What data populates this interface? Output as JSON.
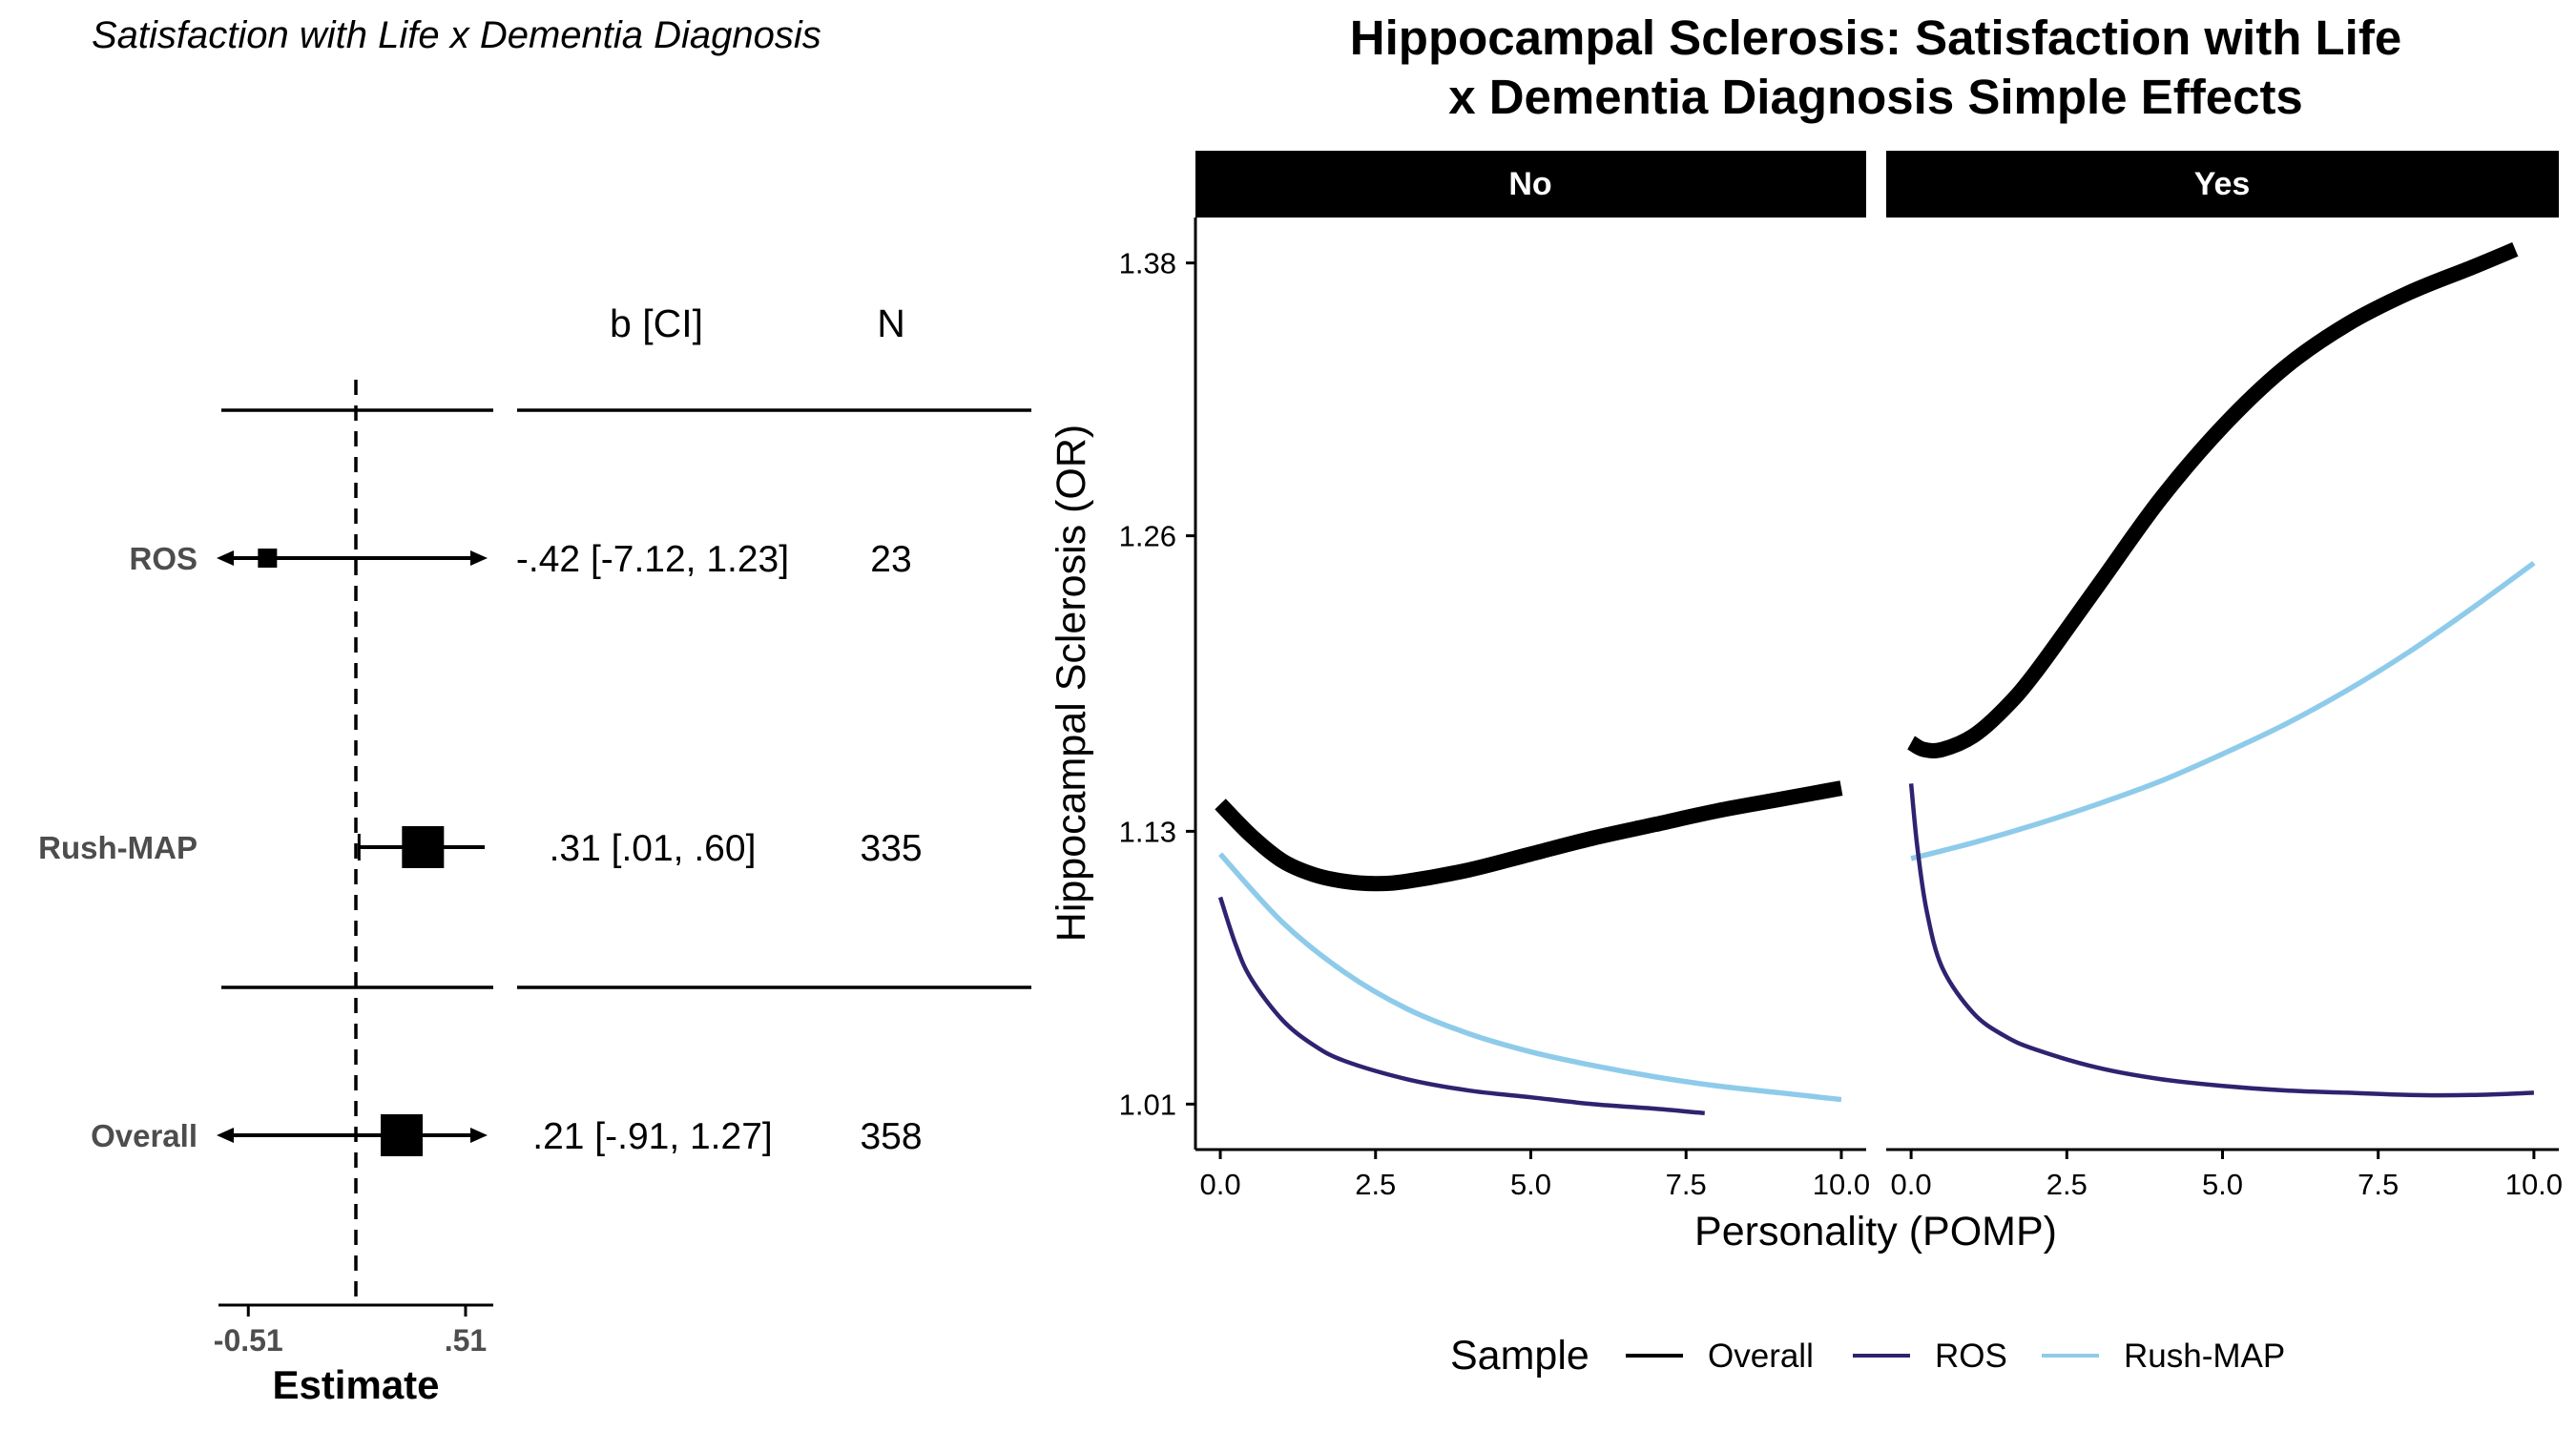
{
  "chart_data": [
    {
      "type": "forest",
      "title": "Satisfaction with Life x Dementia Diagnosis",
      "xlabel": "Estimate",
      "x_ticks": [
        "-0.51",
        ".51"
      ],
      "x_tick_values": [
        -0.51,
        0.51
      ],
      "xlim": [
        -0.65,
        0.64
      ],
      "reference_line": 0,
      "table_headers": {
        "estimate": "b [CI]",
        "n": "N"
      },
      "rows": [
        {
          "label": "ROS",
          "estimate": -0.42,
          "ci_low": -7.12,
          "ci_high": 1.23,
          "text": "-.42 [-7.12, 1.23]",
          "n": "23"
        },
        {
          "label": "Rush-MAP",
          "estimate": 0.31,
          "ci_low": 0.01,
          "ci_high": 0.6,
          "text": ".31 [.01, .60]",
          "n": "335"
        },
        {
          "label": "Overall",
          "estimate": 0.21,
          "ci_low": -0.91,
          "ci_high": 1.27,
          "text": ".21 [-.91, 1.27]",
          "n": "358"
        }
      ]
    },
    {
      "type": "line",
      "title": "Hippocampal Sclerosis: Satisfaction with Life\nx Dementia Diagnosis Simple Effects",
      "xlabel": "Personality (POMP)",
      "ylabel": "Hippocampal Sclerosis (OR)",
      "xlim": [
        -0.4,
        10.4
      ],
      "ylim": [
        0.99,
        1.4
      ],
      "x_ticks": [
        0,
        2.5,
        5,
        7.5,
        10
      ],
      "x_tick_labels": [
        "0.0",
        "2.5",
        "5.0",
        "7.5",
        "10.0"
      ],
      "y_ticks": [
        1.01,
        1.13,
        1.26,
        1.38
      ],
      "y_tick_labels": [
        "1.01",
        "1.13",
        "1.26",
        "1.38"
      ],
      "grid": false,
      "legend": {
        "title": "Sample",
        "position": "bottom",
        "entries": [
          "Overall",
          "ROS",
          "Rush-MAP"
        ]
      },
      "colors": {
        "Overall": "#000000",
        "ROS": "#2e2370",
        "Rush-MAP": "#8ecbea"
      },
      "facets": [
        {
          "label": "No",
          "series": [
            {
              "name": "Overall",
              "x": [
                0,
                0.5,
                1,
                1.5,
                2,
                2.5,
                3,
                4,
                5,
                6,
                7,
                8,
                9,
                10
              ],
              "y": [
                1.142,
                1.128,
                1.117,
                1.111,
                1.108,
                1.107,
                1.108,
                1.113,
                1.12,
                1.127,
                1.133,
                1.139,
                1.144,
                1.149
              ]
            },
            {
              "name": "ROS",
              "x": [
                0,
                0.25,
                0.5,
                1,
                1.5,
                2,
                3,
                4,
                5,
                6,
                7,
                7.8
              ],
              "y": [
                1.101,
                1.08,
                1.065,
                1.047,
                1.036,
                1.029,
                1.021,
                1.016,
                1.013,
                1.01,
                1.008,
                1.006
              ]
            },
            {
              "name": "Rush-MAP",
              "x": [
                0,
                1,
                2,
                3,
                4,
                5,
                6,
                7,
                8,
                9,
                10
              ],
              "y": [
                1.12,
                1.09,
                1.068,
                1.052,
                1.041,
                1.033,
                1.027,
                1.022,
                1.018,
                1.015,
                1.012
              ]
            }
          ]
        },
        {
          "label": "Yes",
          "series": [
            {
              "name": "Overall",
              "x": [
                0,
                0.2,
                0.5,
                1,
                1.5,
                2,
                3,
                4,
                5,
                6,
                7,
                8,
                9,
                9.7
              ],
              "y": [
                1.169,
                1.166,
                1.166,
                1.172,
                1.184,
                1.2,
                1.238,
                1.276,
                1.308,
                1.334,
                1.353,
                1.367,
                1.378,
                1.386
              ]
            },
            {
              "name": "ROS",
              "x": [
                0,
                0.1,
                0.25,
                0.5,
                1,
                1.5,
                2,
                3,
                4,
                5,
                6,
                7,
                8,
                9,
                10
              ],
              "y": [
                1.151,
                1.123,
                1.095,
                1.07,
                1.05,
                1.04,
                1.034,
                1.026,
                1.021,
                1.018,
                1.016,
                1.015,
                1.014,
                1.014,
                1.015
              ]
            },
            {
              "name": "Rush-MAP",
              "x": [
                0,
                1,
                2,
                3,
                4,
                5,
                6,
                7,
                8,
                9,
                10
              ],
              "y": [
                1.118,
                1.125,
                1.133,
                1.142,
                1.152,
                1.164,
                1.177,
                1.192,
                1.209,
                1.228,
                1.248
              ]
            }
          ]
        }
      ]
    }
  ]
}
